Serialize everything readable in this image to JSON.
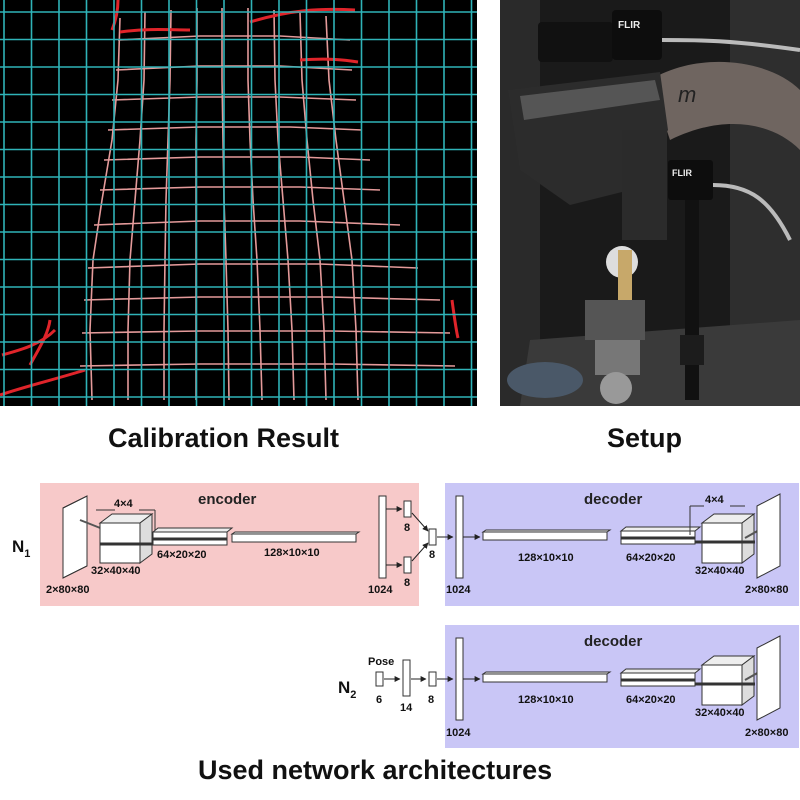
{
  "captions": {
    "calibration": "Calibration Result",
    "setup": "Setup",
    "networks": "Used network architectures"
  },
  "setup_photo": {
    "camera_brand": "FLIR",
    "handwriting": "m"
  },
  "network1": {
    "label": "N",
    "label_sub": "1",
    "encoder": {
      "title": "encoder",
      "kernel": "4×4",
      "input": "2×80×80",
      "conv1": "32×40×40",
      "conv2": "64×20×20",
      "conv3": "128×10×10",
      "fc": "1024",
      "mu": "8",
      "sigma": "8",
      "latent": "8"
    },
    "decoder": {
      "title": "decoder",
      "kernel": "4×4",
      "fc": "1024",
      "deconv1": "128×10×10",
      "deconv2": "64×20×20",
      "deconv3": "32×40×40",
      "output": "2×80×80"
    }
  },
  "network2": {
    "label": "N",
    "label_sub": "2",
    "pose_label": "Pose",
    "pose_dim": "6",
    "hidden": "14",
    "latent": "8",
    "decoder": {
      "title": "decoder",
      "fc": "1024",
      "deconv1": "128×10×10",
      "deconv2": "64×20×20",
      "deconv3": "32×40×40",
      "output": "2×80×80"
    }
  },
  "colors": {
    "grid_cyan": "#2fb3b8",
    "curve_red": "#e0242a",
    "encoder_bg": "#f7c9c9",
    "decoder_bg": "#c9c6f6"
  }
}
